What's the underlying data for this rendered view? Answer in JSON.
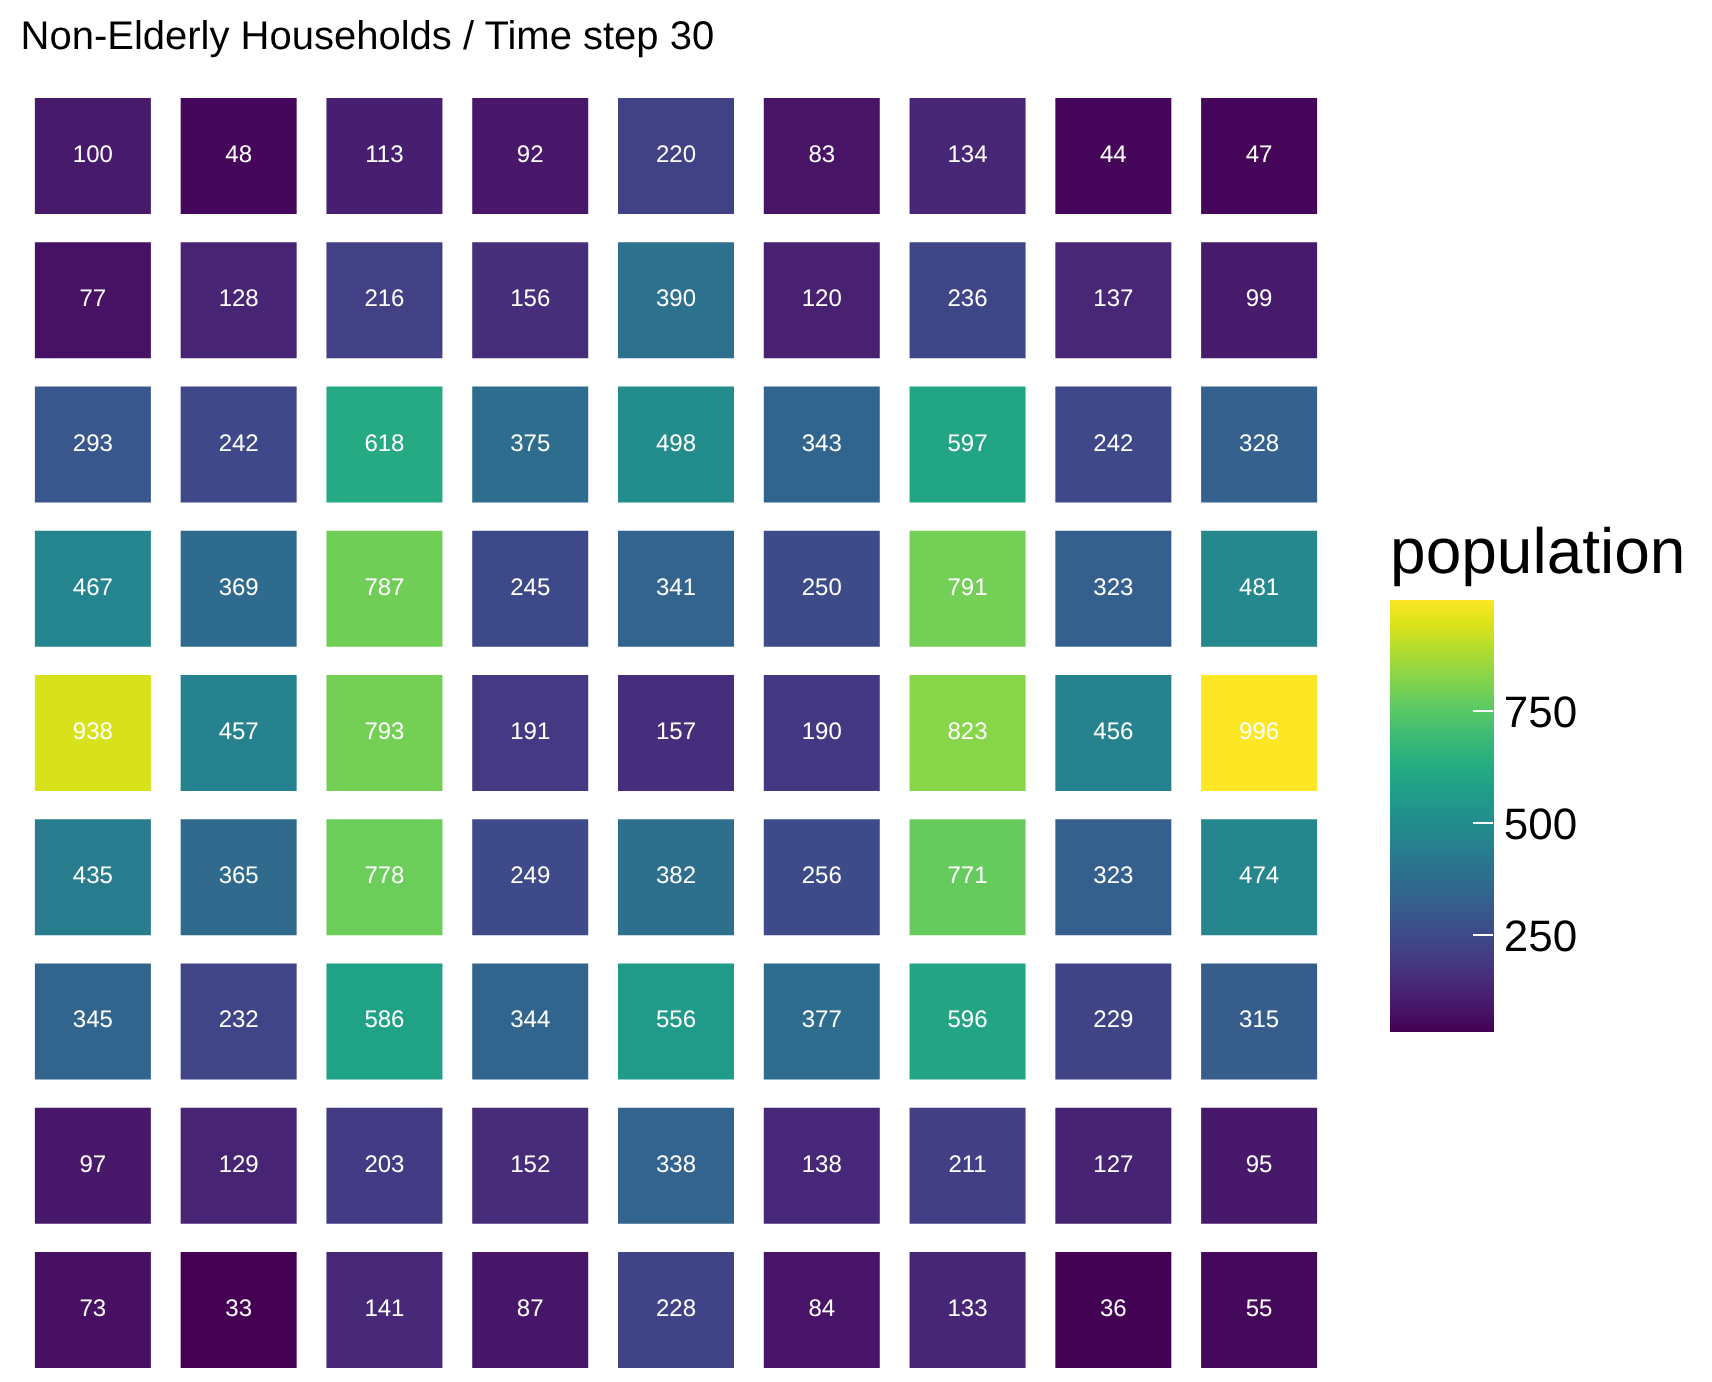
{
  "chart_data": {
    "type": "heatmap",
    "title": "Non-Elderly Households / Time step 30",
    "clabel": "population",
    "categories": [
      null,
      null,
      null,
      null,
      null,
      null,
      null,
      null,
      null
    ],
    "y_categories": [
      null,
      null,
      null,
      null,
      null,
      null,
      null,
      null,
      null
    ],
    "cells": [
      [
        100,
        48,
        113,
        92,
        220,
        83,
        134,
        44,
        47
      ],
      [
        77,
        128,
        216,
        156,
        390,
        120,
        236,
        137,
        99
      ],
      [
        293,
        242,
        618,
        375,
        498,
        343,
        597,
        242,
        328
      ],
      [
        467,
        369,
        787,
        245,
        341,
        250,
        791,
        323,
        481
      ],
      [
        938,
        457,
        793,
        191,
        157,
        190,
        823,
        456,
        996
      ],
      [
        435,
        365,
        778,
        249,
        382,
        256,
        771,
        323,
        474
      ],
      [
        345,
        232,
        586,
        344,
        556,
        377,
        596,
        229,
        315
      ],
      [
        97,
        129,
        203,
        152,
        338,
        138,
        211,
        127,
        95
      ],
      [
        73,
        33,
        141,
        87,
        228,
        84,
        133,
        36,
        55
      ]
    ],
    "clim": [
      33,
      996
    ],
    "cticks": [
      250,
      500,
      750
    ],
    "data_labels": true
  }
}
